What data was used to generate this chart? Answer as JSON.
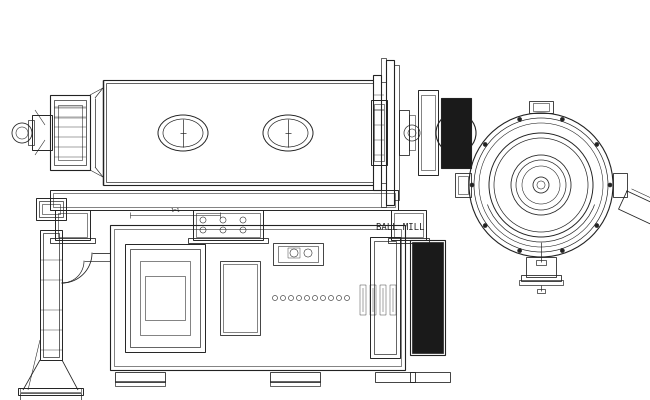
{
  "bg_color": "#ffffff",
  "line_color": "#222222",
  "title": "BALL MILL",
  "figsize": [
    6.5,
    4.0
  ],
  "dpi": 100
}
